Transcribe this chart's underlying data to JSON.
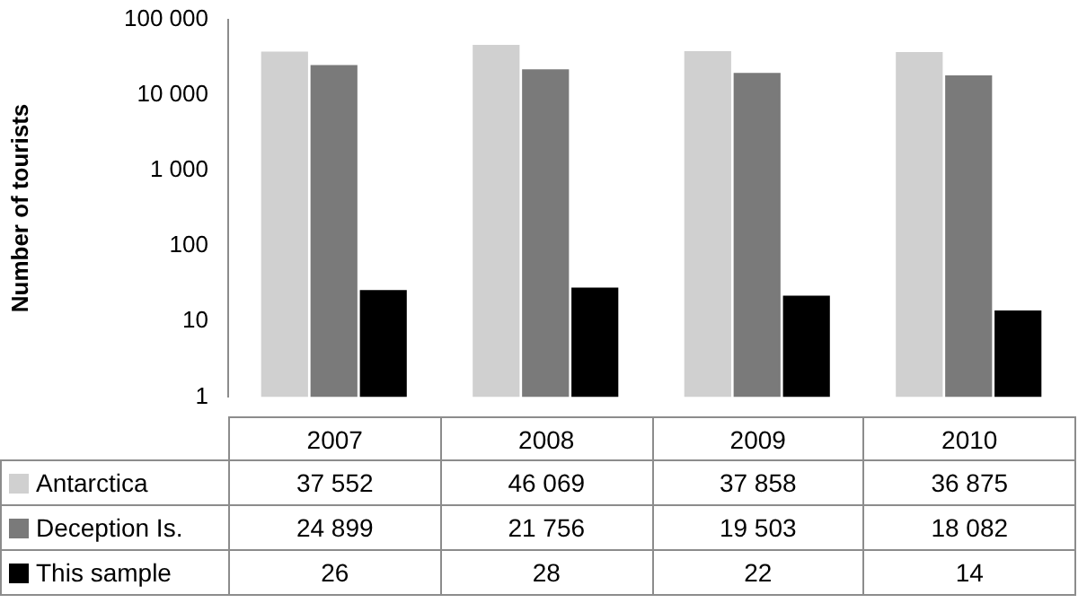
{
  "chart_data": {
    "type": "bar",
    "ylabel": "Number of tourists",
    "categories": [
      "2007",
      "2008",
      "2009",
      "2010"
    ],
    "series": [
      {
        "name": "Antarctica",
        "color": "#d0d0d0",
        "values": [
          37552,
          46069,
          37858,
          36875
        ]
      },
      {
        "name": "Deception Is.",
        "color": "#7a7a7a",
        "values": [
          24899,
          21756,
          19503,
          18082
        ]
      },
      {
        "name": "This sample",
        "color": "#000000",
        "values": [
          26,
          28,
          22,
          14
        ]
      }
    ],
    "log": true,
    "ylim": [
      1,
      100000
    ],
    "yticks": [
      1,
      10,
      100,
      {
        "value": 1000,
        "label": "1 000"
      },
      {
        "value": 10000,
        "label": "10 000"
      },
      {
        "value": 100000,
        "label": "100 000"
      }
    ],
    "grid": false,
    "legend": "bottom",
    "data_labels": true
  }
}
